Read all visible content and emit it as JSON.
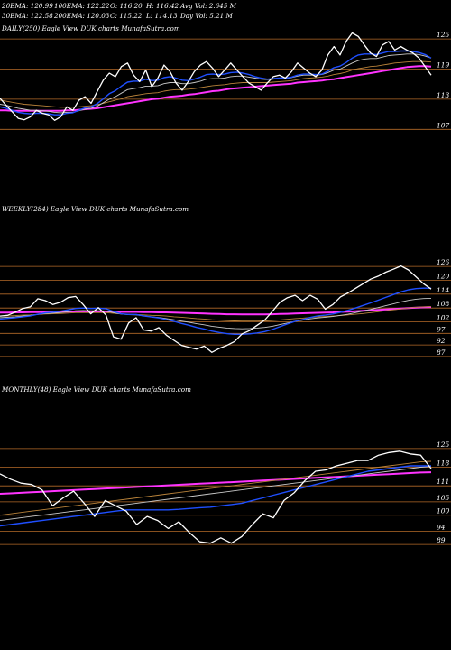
{
  "header": {
    "row1": [
      {
        "label": "20EMA: 120.99"
      },
      {
        "label": "100EMA: 122.22"
      },
      {
        "label": "O: 116.20"
      },
      {
        "label": "H: 116.42"
      },
      {
        "label": "Avg Vol: 2.645 M"
      }
    ],
    "row2": [
      {
        "label": "30EMA: 122.58"
      },
      {
        "label": "200EMA: 120.03"
      },
      {
        "label": "C: 115.22"
      },
      {
        "label": "L: 114.13"
      },
      {
        "label": "Day Vol: 5.21 M"
      }
    ]
  },
  "colors": {
    "background": "#000000",
    "price": "#ffffff",
    "ema_fast": "#1f4fff",
    "ema_mid": "#c8c8c8",
    "ema_slow": "#b8823a",
    "ema_long": "#ff33ff",
    "gridline": "#b46a28"
  },
  "chart_data": [
    {
      "type": "line",
      "panel": "DAILY(250) Eagle  View  DUK charts MunafaSutra.com",
      "ylim": [
        104,
        127
      ],
      "yticks": [
        "125",
        "119",
        "113",
        "107"
      ],
      "grid": true,
      "series": [
        {
          "role": "price",
          "values": [
            113.2,
            111.8,
            110.5,
            109.2,
            108.9,
            109.5,
            110.8,
            110.2,
            109.9,
            108.8,
            109.5,
            111.5,
            110.8,
            112.8,
            113.5,
            112.2,
            114.5,
            116.8,
            118.2,
            117.5,
            119.5,
            120.2,
            117.8,
            116.5,
            118.8,
            115.5,
            117.2,
            119.8,
            118.5,
            116.2,
            114.8,
            116.5,
            118.5,
            119.8,
            120.5,
            119.2,
            117.5,
            118.8,
            120.2,
            118.8,
            117.5,
            116.2,
            115.5,
            114.8,
            116.2,
            117.5,
            117.8,
            117.2,
            118.5,
            120.2,
            119.2,
            118.2,
            117.5,
            118.8,
            121.8,
            123.5,
            121.8,
            124.5,
            126.2,
            125.5,
            123.8,
            122.2,
            121.5,
            123.8,
            124.5,
            122.8,
            123.5,
            122.8,
            122.2,
            121.2,
            119.5,
            117.8
          ]
        },
        {
          "role": "ema_fast",
          "values": [
            111.5,
            111.2,
            110.8,
            110.4,
            110.2,
            110.1,
            110.2,
            110.2,
            110.1,
            109.9,
            109.9,
            110.2,
            110.3,
            110.8,
            111.3,
            111.5,
            112.1,
            113.1,
            114.1,
            114.7,
            115.6,
            116.4,
            116.6,
            116.6,
            117.0,
            116.7,
            116.8,
            117.3,
            117.5,
            117.2,
            116.8,
            116.7,
            117.0,
            117.4,
            117.9,
            118.0,
            117.9,
            118.0,
            118.3,
            118.4,
            118.2,
            117.9,
            117.5,
            117.2,
            117.0,
            117.1,
            117.2,
            117.2,
            117.4,
            117.8,
            118.0,
            118.0,
            117.9,
            118.0,
            118.6,
            119.3,
            119.6,
            120.3,
            121.2,
            121.8,
            122.0,
            122.0,
            121.9,
            122.2,
            122.5,
            122.5,
            122.6,
            122.6,
            122.5,
            122.3,
            121.9,
            121.2
          ]
        },
        {
          "role": "ema_mid",
          "values": [
            112.0,
            111.8,
            111.5,
            111.2,
            111.0,
            110.8,
            110.8,
            110.7,
            110.6,
            110.4,
            110.3,
            110.4,
            110.4,
            110.7,
            111.0,
            111.2,
            111.6,
            112.3,
            113.0,
            113.5,
            114.2,
            114.9,
            115.1,
            115.3,
            115.6,
            115.6,
            115.7,
            116.1,
            116.3,
            116.3,
            116.1,
            116.1,
            116.3,
            116.6,
            117.0,
            117.1,
            117.1,
            117.2,
            117.5,
            117.6,
            117.6,
            117.4,
            117.2,
            117.0,
            116.9,
            117.0,
            117.1,
            117.1,
            117.3,
            117.6,
            117.8,
            117.8,
            117.8,
            117.9,
            118.3,
            118.8,
            119.0,
            119.6,
            120.2,
            120.7,
            121.0,
            121.1,
            121.1,
            121.4,
            121.7,
            121.8,
            121.9,
            122.0,
            122.0,
            121.9,
            121.6,
            121.2
          ]
        },
        {
          "role": "ema_slow",
          "values": [
            112.8,
            112.6,
            112.4,
            112.2,
            112.0,
            111.9,
            111.8,
            111.7,
            111.6,
            111.5,
            111.4,
            111.4,
            111.4,
            111.5,
            111.6,
            111.7,
            111.9,
            112.2,
            112.5,
            112.8,
            113.1,
            113.5,
            113.7,
            113.9,
            114.1,
            114.2,
            114.3,
            114.6,
            114.8,
            114.9,
            114.9,
            115.0,
            115.1,
            115.3,
            115.5,
            115.7,
            115.8,
            115.9,
            116.1,
            116.2,
            116.3,
            116.3,
            116.3,
            116.3,
            116.3,
            116.4,
            116.5,
            116.6,
            116.7,
            116.9,
            117.1,
            117.2,
            117.3,
            117.4,
            117.6,
            117.9,
            118.1,
            118.4,
            118.8,
            119.1,
            119.3,
            119.5,
            119.6,
            119.8,
            120.0,
            120.2,
            120.3,
            120.4,
            120.5,
            120.5,
            120.5,
            120.4
          ]
        },
        {
          "role": "ema_long",
          "values": [
            110.8,
            110.8,
            110.7,
            110.7,
            110.7,
            110.7,
            110.7,
            110.7,
            110.7,
            110.7,
            110.7,
            110.8,
            110.8,
            110.9,
            111.0,
            111.1,
            111.2,
            111.4,
            111.6,
            111.8,
            112.0,
            112.2,
            112.4,
            112.6,
            112.8,
            113.0,
            113.1,
            113.3,
            113.5,
            113.6,
            113.7,
            113.9,
            114.0,
            114.2,
            114.4,
            114.6,
            114.7,
            114.9,
            115.1,
            115.2,
            115.3,
            115.4,
            115.5,
            115.6,
            115.7,
            115.8,
            115.9,
            116.0,
            116.1,
            116.3,
            116.4,
            116.5,
            116.6,
            116.7,
            116.9,
            117.0,
            117.2,
            117.4,
            117.6,
            117.8,
            118.0,
            118.2,
            118.4,
            118.6,
            118.8,
            119.0,
            119.2,
            119.4,
            119.5,
            119.6,
            119.6,
            119.5
          ]
        }
      ]
    },
    {
      "type": "line",
      "panel": "WEEKLY(284) Eagle  View  DUK charts MunafaSutra.com",
      "ylim": [
        85,
        128
      ],
      "yticks": [
        "126",
        "120",
        "114",
        "108",
        "102",
        "97",
        "92",
        "87"
      ],
      "grid": true,
      "series": [
        {
          "role": "price",
          "values": [
            104.5,
            104.8,
            106.2,
            107.8,
            108.5,
            112.0,
            111.2,
            109.5,
            110.5,
            112.5,
            113.0,
            109.5,
            105.5,
            108.2,
            105.0,
            95.5,
            94.5,
            101.5,
            103.8,
            98.5,
            98.0,
            99.5,
            96.2,
            94.0,
            91.8,
            91.0,
            90.2,
            91.5,
            88.8,
            90.5,
            91.8,
            93.5,
            96.8,
            98.2,
            100.5,
            102.8,
            106.5,
            110.5,
            112.5,
            113.5,
            111.2,
            113.5,
            111.8,
            107.5,
            109.5,
            112.8,
            114.5,
            116.5,
            118.5,
            120.5,
            121.8,
            123.5,
            124.8,
            126.2,
            124.5,
            121.5,
            118.5,
            116.2
          ]
        },
        {
          "role": "ema_fast",
          "values": [
            103.2,
            103.5,
            103.8,
            104.2,
            104.6,
            105.3,
            105.9,
            106.2,
            106.6,
            107.2,
            107.8,
            108.0,
            107.8,
            107.9,
            107.7,
            106.5,
            105.5,
            105.2,
            105.2,
            104.6,
            104.1,
            103.7,
            103.0,
            102.2,
            101.3,
            100.5,
            99.6,
            98.9,
            98.0,
            97.4,
            96.9,
            96.6,
            96.6,
            96.8,
            97.2,
            97.8,
            98.7,
            99.9,
            101.1,
            102.2,
            103.0,
            103.9,
            104.6,
            104.9,
            105.4,
            106.1,
            107.0,
            108.0,
            109.1,
            110.2,
            111.4,
            112.6,
            113.8,
            115.0,
            115.9,
            116.4,
            116.6,
            116.6
          ]
        },
        {
          "role": "ema_mid",
          "values": [
            103.8,
            104.0,
            104.2,
            104.5,
            104.8,
            105.2,
            105.6,
            105.8,
            106.0,
            106.4,
            106.8,
            106.9,
            106.8,
            106.8,
            106.7,
            106.0,
            105.4,
            105.1,
            105.0,
            104.6,
            104.2,
            103.9,
            103.4,
            102.9,
            102.3,
            101.8,
            101.2,
            100.7,
            100.1,
            99.7,
            99.3,
            99.1,
            99.0,
            99.1,
            99.3,
            99.6,
            100.1,
            100.8,
            101.5,
            102.2,
            102.7,
            103.3,
            103.7,
            104.0,
            104.3,
            104.8,
            105.3,
            106.0,
            106.7,
            107.4,
            108.2,
            109.0,
            109.8,
            110.6,
            111.3,
            111.8,
            112.1,
            112.2
          ]
        },
        {
          "role": "ema_slow",
          "values": [
            104.5,
            104.6,
            104.7,
            104.9,
            105.0,
            105.2,
            105.4,
            105.5,
            105.6,
            105.8,
            106.0,
            106.0,
            106.0,
            106.0,
            106.0,
            105.7,
            105.4,
            105.3,
            105.2,
            105.0,
            104.8,
            104.7,
            104.5,
            104.2,
            104.0,
            103.7,
            103.4,
            103.2,
            102.9,
            102.7,
            102.5,
            102.4,
            102.3,
            102.3,
            102.3,
            102.4,
            102.6,
            102.8,
            103.1,
            103.4,
            103.6,
            103.9,
            104.1,
            104.3,
            104.5,
            104.7,
            105.0,
            105.3,
            105.6,
            106.0,
            106.4,
            106.8,
            107.2,
            107.6,
            108.0,
            108.3,
            108.5,
            108.6
          ]
        },
        {
          "role": "ema_long",
          "values": [
            106.0,
            106.0,
            106.1,
            106.1,
            106.2,
            106.2,
            106.3,
            106.3,
            106.4,
            106.4,
            106.5,
            106.5,
            106.5,
            106.5,
            106.5,
            106.4,
            106.3,
            106.3,
            106.3,
            106.2,
            106.2,
            106.1,
            106.1,
            106.0,
            105.9,
            105.8,
            105.7,
            105.6,
            105.5,
            105.4,
            105.3,
            105.3,
            105.2,
            105.2,
            105.2,
            105.2,
            105.3,
            105.4,
            105.5,
            105.6,
            105.7,
            105.8,
            105.9,
            106.0,
            106.1,
            106.3,
            106.4,
            106.6,
            106.8,
            107.0,
            107.2,
            107.4,
            107.6,
            107.8,
            108.0,
            108.2,
            108.3,
            108.4
          ]
        }
      ]
    },
    {
      "type": "line",
      "panel": "MONTHLY(48) Eagle  View  DUK charts MunafaSutra.com",
      "ylim": [
        86,
        128
      ],
      "yticks": [
        "125",
        "118",
        "111",
        "105",
        "100",
        "94",
        "89"
      ],
      "grid": true,
      "series": [
        {
          "role": "price",
          "values": [
            115.5,
            113.5,
            112.0,
            111.5,
            109.5,
            103.5,
            106.5,
            109.0,
            104.5,
            99.5,
            105.5,
            103.5,
            101.5,
            96.5,
            99.5,
            98.0,
            95.0,
            97.5,
            93.5,
            90.0,
            89.5,
            91.5,
            89.5,
            92.0,
            96.5,
            100.5,
            99.0,
            105.5,
            108.5,
            113.0,
            116.5,
            117.0,
            118.5,
            119.5,
            120.5,
            120.5,
            122.5,
            123.5,
            124.0,
            123.0,
            122.5,
            117.5
          ]
        },
        {
          "role": "ema_fast",
          "values": [
            96.0,
            96.5,
            97.0,
            97.5,
            98.0,
            98.5,
            99.0,
            99.5,
            100.0,
            100.5,
            101.0,
            101.5,
            102.0,
            102.0,
            102.0,
            102.0,
            102.0,
            102.2,
            102.5,
            102.8,
            103.0,
            103.5,
            104.0,
            104.5,
            105.5,
            106.5,
            107.5,
            108.5,
            109.5,
            110.5,
            111.5,
            112.5,
            113.5,
            114.5,
            115.5,
            116.5,
            117.0,
            117.5,
            118.0,
            118.5,
            118.5,
            118.5
          ]
        },
        {
          "role": "ema_mid",
          "values": [
            98.0,
            98.5,
            99.0,
            99.5,
            100.0,
            100.5,
            101.0,
            101.5,
            102.0,
            102.5,
            103.0,
            103.5,
            104.0,
            104.5,
            105.0,
            105.5,
            106.0,
            106.5,
            107.0,
            107.5,
            108.0,
            108.5,
            109.0,
            109.5,
            110.0,
            110.5,
            111.0,
            111.5,
            112.0,
            112.5,
            113.0,
            113.5,
            114.0,
            114.5,
            115.0,
            115.5,
            116.0,
            116.5,
            117.0,
            117.5,
            118.0,
            118.3
          ]
        },
        {
          "role": "ema_slow",
          "values": [
            100.0,
            100.5,
            101.0,
            101.5,
            102.0,
            102.5,
            103.0,
            103.5,
            104.0,
            104.5,
            105.0,
            105.5,
            106.0,
            106.5,
            107.0,
            107.5,
            108.0,
            108.5,
            109.0,
            109.5,
            110.0,
            110.5,
            111.0,
            111.5,
            112.0,
            112.5,
            113.0,
            113.5,
            114.0,
            114.5,
            115.0,
            115.5,
            116.0,
            116.5,
            117.0,
            117.5,
            118.0,
            118.5,
            119.0,
            119.5,
            120.0,
            120.2
          ]
        },
        {
          "role": "ema_long",
          "values": [
            108.0,
            108.2,
            108.4,
            108.6,
            108.8,
            109.0,
            109.2,
            109.4,
            109.6,
            109.8,
            110.0,
            110.2,
            110.4,
            110.6,
            110.8,
            111.0,
            111.2,
            111.4,
            111.6,
            111.8,
            112.0,
            112.2,
            112.4,
            112.6,
            112.8,
            113.0,
            113.2,
            113.4,
            113.6,
            113.8,
            114.0,
            114.2,
            114.4,
            114.6,
            114.8,
            115.0,
            115.2,
            115.4,
            115.6,
            115.8,
            116.0,
            116.1
          ]
        }
      ]
    }
  ]
}
